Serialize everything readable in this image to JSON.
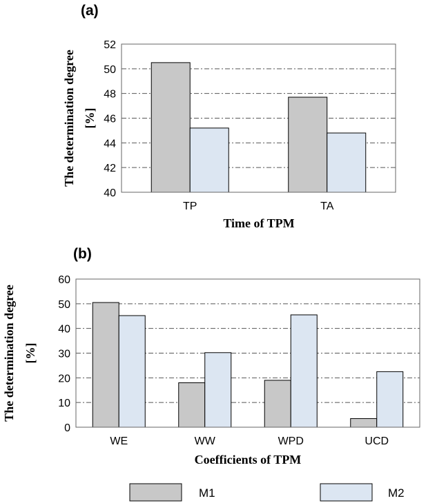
{
  "colors": {
    "m1": "#c8c8c8",
    "m2": "#dce6f2",
    "grid": "#555555",
    "stroke": "#000000"
  },
  "legend": {
    "placement": "bottom",
    "items": [
      "M1",
      "M2"
    ]
  },
  "chart_data": [
    {
      "type": "bar",
      "panel_label": "(a)",
      "categories": [
        "TP",
        "TA"
      ],
      "series": [
        {
          "name": "M1",
          "values": [
            50.5,
            47.7
          ]
        },
        {
          "name": "M2",
          "values": [
            45.2,
            44.8
          ]
        }
      ],
      "xlabel": "Time of TPM",
      "ylabel_lines": [
        "The determination degree",
        "[%]"
      ],
      "ylim": [
        40,
        52
      ],
      "yticks": [
        40,
        42,
        44,
        46,
        48,
        50,
        52
      ],
      "grid": "horizontal dash-dot"
    },
    {
      "type": "bar",
      "panel_label": "(b)",
      "categories": [
        "WE",
        "WW",
        "WPD",
        "UCD"
      ],
      "series": [
        {
          "name": "M1",
          "values": [
            50.5,
            18,
            19,
            3.5
          ]
        },
        {
          "name": "M2",
          "values": [
            45.2,
            30.2,
            45.5,
            22.5
          ]
        }
      ],
      "xlabel": "Coefficients of TPM",
      "ylabel_lines": [
        "The determination degree",
        "[%]"
      ],
      "ylim": [
        0,
        60
      ],
      "yticks": [
        0,
        10,
        20,
        30,
        40,
        50,
        60
      ],
      "grid": "horizontal dash-dot"
    }
  ]
}
